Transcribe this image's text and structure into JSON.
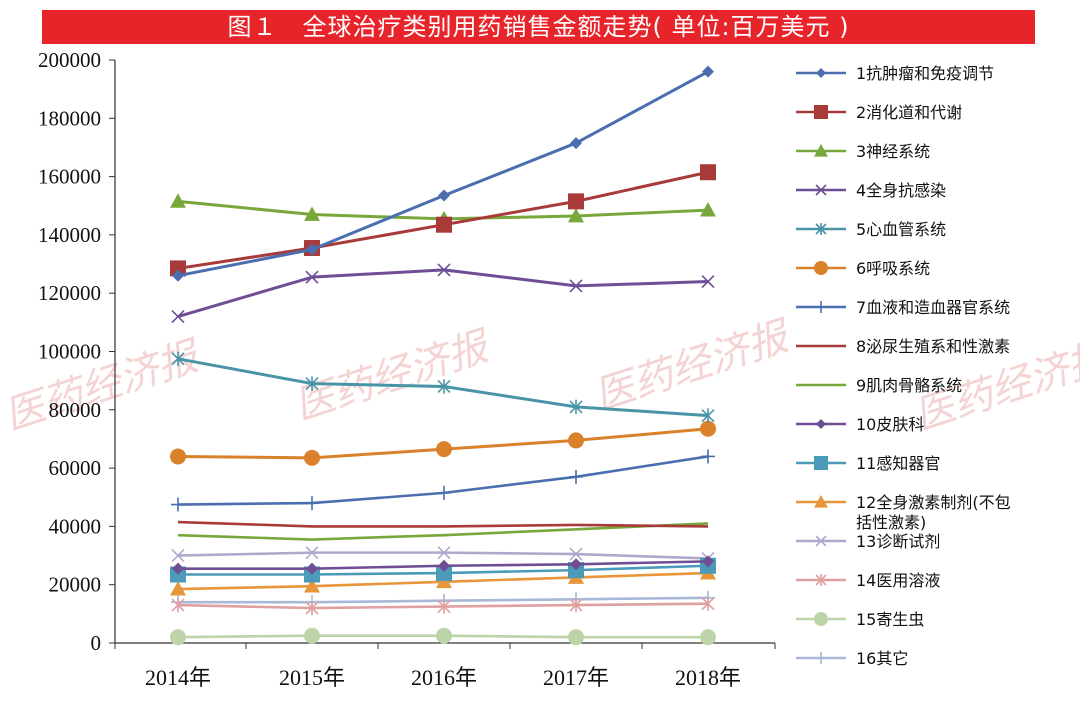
{
  "title": "图１　全球治疗类别用药销售金额走势( 单位:百万美元 )",
  "watermark": "医药经济报",
  "chart_data": {
    "type": "line",
    "categories": [
      "2014年",
      "2015年",
      "2016年",
      "2017年",
      "2018年"
    ],
    "ylim": [
      0,
      200000
    ],
    "yticks": [
      0,
      20000,
      40000,
      60000,
      80000,
      100000,
      120000,
      140000,
      160000,
      180000,
      200000
    ],
    "grid": false,
    "legend_position": "right",
    "series": [
      {
        "name": "1抗肿瘤和免疫调节",
        "color": "#4a6eb0",
        "marker": "diamond",
        "values": [
          126000,
          135000,
          153500,
          171500,
          196000
        ]
      },
      {
        "name": "2消化道和代谢",
        "color": "#a83a3a",
        "marker": "square",
        "values": [
          128500,
          135500,
          143500,
          151500,
          161500
        ]
      },
      {
        "name": "3神经系统",
        "color": "#78a83c",
        "marker": "triangle",
        "values": [
          151500,
          147000,
          145500,
          146500,
          148500
        ]
      },
      {
        "name": "4全身抗感染",
        "color": "#6f4e96",
        "marker": "x",
        "values": [
          112000,
          125500,
          128000,
          122500,
          124000
        ]
      },
      {
        "name": "5心血管系统",
        "color": "#4a94a8",
        "marker": "star",
        "values": [
          97500,
          89000,
          88000,
          81000,
          78000
        ]
      },
      {
        "name": "6呼吸系统",
        "color": "#d9822b",
        "marker": "circle",
        "values": [
          64000,
          63500,
          66500,
          69500,
          73500
        ]
      },
      {
        "name": "7血液和造血器官系统",
        "color": "#4a6eb0",
        "marker": "plus",
        "values": [
          47500,
          48000,
          51500,
          57000,
          64000
        ]
      },
      {
        "name": "8泌尿生殖系和性激素",
        "color": "#a83a3a",
        "marker": "none",
        "values": [
          41500,
          40000,
          40000,
          40500,
          40000
        ]
      },
      {
        "name": "9肌肉骨骼系统",
        "color": "#78a83c",
        "marker": "none",
        "values": [
          37000,
          35500,
          37000,
          39000,
          41000
        ]
      },
      {
        "name": "10皮肤科",
        "color": "#6f4e96",
        "marker": "diamond",
        "values": [
          25500,
          25500,
          26500,
          27000,
          28000
        ]
      },
      {
        "name": "11感知器官",
        "color": "#4a9ab8",
        "marker": "square",
        "values": [
          23500,
          23500,
          24000,
          25000,
          26500
        ]
      },
      {
        "name": "12全身激素制剂(不包括性激素)",
        "color": "#e8963a",
        "marker": "triangle",
        "values": [
          18500,
          19500,
          21000,
          22500,
          24000
        ]
      },
      {
        "name": "13诊断试剂",
        "color": "#b0a8cc",
        "marker": "x",
        "values": [
          30000,
          31000,
          31000,
          30500,
          29000
        ]
      },
      {
        "name": "14医用溶液",
        "color": "#e0a0a0",
        "marker": "star",
        "values": [
          13000,
          12000,
          12500,
          13000,
          13500
        ]
      },
      {
        "name": "15寄生虫",
        "color": "#bcd4a8",
        "marker": "circle",
        "values": [
          2000,
          2500,
          2500,
          2000,
          2000
        ]
      },
      {
        "name": "16其它",
        "color": "#a8b8d8",
        "marker": "plus",
        "values": [
          14000,
          14000,
          14500,
          15000,
          15500
        ]
      }
    ]
  }
}
